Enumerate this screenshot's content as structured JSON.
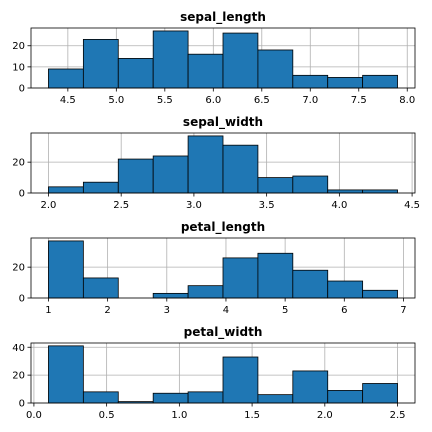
{
  "colors": {
    "bar": "#1f77b4",
    "edge": "#000000"
  },
  "chart_data": [
    {
      "type": "bar",
      "title": "sepal_length",
      "bin_edges": [
        4.3,
        4.66,
        5.02,
        5.38,
        5.74,
        6.1,
        6.46,
        6.82,
        7.18,
        7.54,
        7.9
      ],
      "values": [
        9,
        23,
        14,
        27,
        16,
        26,
        18,
        6,
        5,
        6
      ],
      "xlim": [
        4.12,
        8.08
      ],
      "ylim": [
        0,
        28.4
      ],
      "xticks": [
        4.5,
        5.0,
        5.5,
        6.0,
        6.5,
        7.0,
        7.5,
        8.0
      ],
      "xtick_labels": [
        "4.5",
        "5.0",
        "5.5",
        "6.0",
        "6.5",
        "7.0",
        "7.5",
        "8.0"
      ],
      "yticks": [
        0,
        10,
        20
      ],
      "ytick_labels": [
        "0",
        "10",
        "20"
      ],
      "grid": true
    },
    {
      "type": "bar",
      "title": "sepal_width",
      "bin_edges": [
        2.0,
        2.24,
        2.48,
        2.72,
        2.96,
        3.2,
        3.44,
        3.68,
        3.92,
        4.16,
        4.4
      ],
      "values": [
        4,
        7,
        22,
        24,
        37,
        31,
        10,
        11,
        2,
        2
      ],
      "xlim": [
        1.88,
        4.52
      ],
      "ylim": [
        0,
        38.9
      ],
      "xticks": [
        2.0,
        2.5,
        3.0,
        3.5,
        4.0,
        4.5
      ],
      "xtick_labels": [
        "2.0",
        "2.5",
        "3.0",
        "3.5",
        "4.0",
        "4.5"
      ],
      "yticks": [
        0,
        20
      ],
      "ytick_labels": [
        "0",
        "20"
      ],
      "grid": true
    },
    {
      "type": "bar",
      "title": "petal_length",
      "bin_edges": [
        1.0,
        1.59,
        2.18,
        2.77,
        3.36,
        3.95,
        4.54,
        5.13,
        5.72,
        6.31,
        6.9
      ],
      "values": [
        37,
        13,
        0,
        3,
        8,
        26,
        29,
        18,
        11,
        5
      ],
      "xlim": [
        0.705,
        7.195
      ],
      "ylim": [
        0,
        38.9
      ],
      "xticks": [
        1,
        2,
        3,
        4,
        5,
        6,
        7
      ],
      "xtick_labels": [
        "1",
        "2",
        "3",
        "4",
        "5",
        "6",
        "7"
      ],
      "yticks": [
        0,
        20
      ],
      "ytick_labels": [
        "0",
        "20"
      ],
      "grid": true
    },
    {
      "type": "bar",
      "title": "petal_width",
      "bin_edges": [
        0.1,
        0.34,
        0.58,
        0.82,
        1.06,
        1.3,
        1.54,
        1.78,
        2.02,
        2.26,
        2.5
      ],
      "values": [
        41,
        8,
        1,
        7,
        8,
        33,
        6,
        23,
        9,
        14
      ],
      "xlim": [
        -0.02,
        2.62
      ],
      "ylim": [
        0,
        43.05
      ],
      "xticks": [
        0.0,
        0.5,
        1.0,
        1.5,
        2.0,
        2.5
      ],
      "xtick_labels": [
        "0.0",
        "0.5",
        "1.0",
        "1.5",
        "2.0",
        "2.5"
      ],
      "yticks": [
        0,
        20,
        40
      ],
      "ytick_labels": [
        "0",
        "20",
        "40"
      ],
      "grid": true
    }
  ]
}
